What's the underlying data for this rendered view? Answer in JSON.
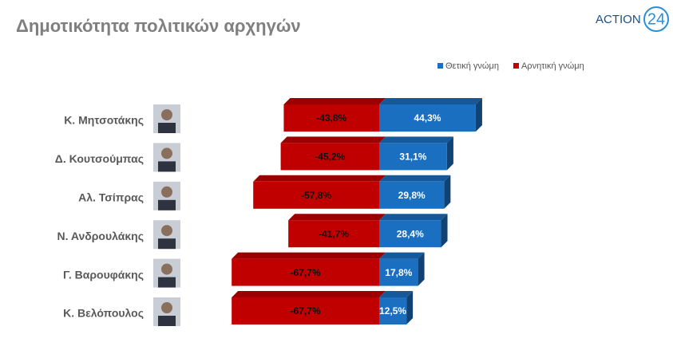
{
  "logo": {
    "text": "ACTION",
    "number": "24"
  },
  "chart_data": {
    "type": "bar",
    "orientation": "horizontal",
    "stacked": "diverging",
    "title": "Δημοτικότητα πολιτικών αρχηγών",
    "categories": [
      "Κ. Μητσοτάκης",
      "Δ. Κουτσούμπας",
      "Αλ. Τσίπρας",
      "Ν. Ανδρουλάκης",
      "Γ. Βαρουφάκης",
      "Κ. Βελόπουλος"
    ],
    "series": [
      {
        "name": "Θετική γνώμη",
        "color": "#1a6fc1",
        "values": [
          44.3,
          31.1,
          29.8,
          28.4,
          17.8,
          12.5
        ],
        "value_labels": [
          "44,3%",
          "31,1%",
          "29,8%",
          "28,4%",
          "17,8%",
          "12,5%"
        ]
      },
      {
        "name": "Αρνητική γνώμη",
        "color": "#c00000",
        "values": [
          -43.8,
          -45.2,
          -57.8,
          -41.7,
          -67.7,
          -67.7
        ],
        "value_labels": [
          "-43,8%",
          "-45,2%",
          "-57,8%",
          "-41,7%",
          "-67,7%",
          "-67,7%"
        ]
      }
    ]
  }
}
